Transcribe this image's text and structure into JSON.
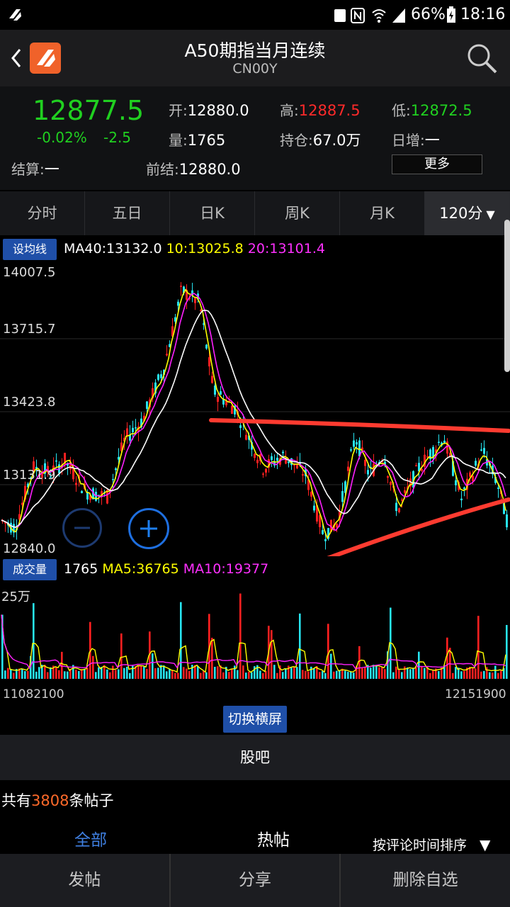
{
  "status_bar": {
    "battery": "66%",
    "time": "18:16"
  },
  "header": {
    "title": "A50期指当月连续",
    "code": "CN00Y"
  },
  "quote": {
    "price": "12877.5",
    "change_pct": "-0.02%",
    "change": "-2.5",
    "open_label": "开:",
    "open": "12880.0",
    "high_label": "高:",
    "high": "12887.5",
    "low_label": "低:",
    "low": "12872.5",
    "volume_label": "量:",
    "volume": "1765",
    "oi_label": "持仓:",
    "oi": "67.0万",
    "daily_inc_label": "日增:",
    "daily_inc": "一",
    "settle_label": "结算:",
    "settle": "一",
    "prev_settle_label": "前结:",
    "prev_settle": "12880.0",
    "more_label": "更多"
  },
  "tabs": [
    "分时",
    "五日",
    "日K",
    "周K",
    "月K",
    "120分"
  ],
  "ma_bar": {
    "button": "设均线",
    "ma40": "MA40:13132.0",
    "ma10": "10:13025.8",
    "ma20": "20:13101.4"
  },
  "chart_data": {
    "type": "candlestick",
    "y_ticks": [
      "14007.5",
      "13715.7",
      "13423.8",
      "13131.9",
      "12840.0"
    ],
    "ylim": [
      12840.0,
      14007.5
    ],
    "colors": {
      "up": "#ff2020",
      "down": "#27e4f0",
      "ma10": "#ffff00",
      "ma20": "#ff20ff",
      "ma40": "#ffffff",
      "annotation": "#ff3b30"
    }
  },
  "volume_bar": {
    "button": "成交量",
    "volume": "1765",
    "ma5": "MA5:36765",
    "ma10": "MA10:19377",
    "axis_top": "25万",
    "x_start": "11082100",
    "x_end": "12151900"
  },
  "landscape_button": "切换横屏",
  "guba_title": "股吧",
  "posts": {
    "prefix": "共有",
    "count": "3808",
    "suffix": "条帖子"
  },
  "post_tabs": {
    "all": "全部",
    "hot": "热帖",
    "sort": "按评论时间排序"
  },
  "bottom_nav": {
    "post": "发帖",
    "share": "分享",
    "remove": "删除自选"
  }
}
